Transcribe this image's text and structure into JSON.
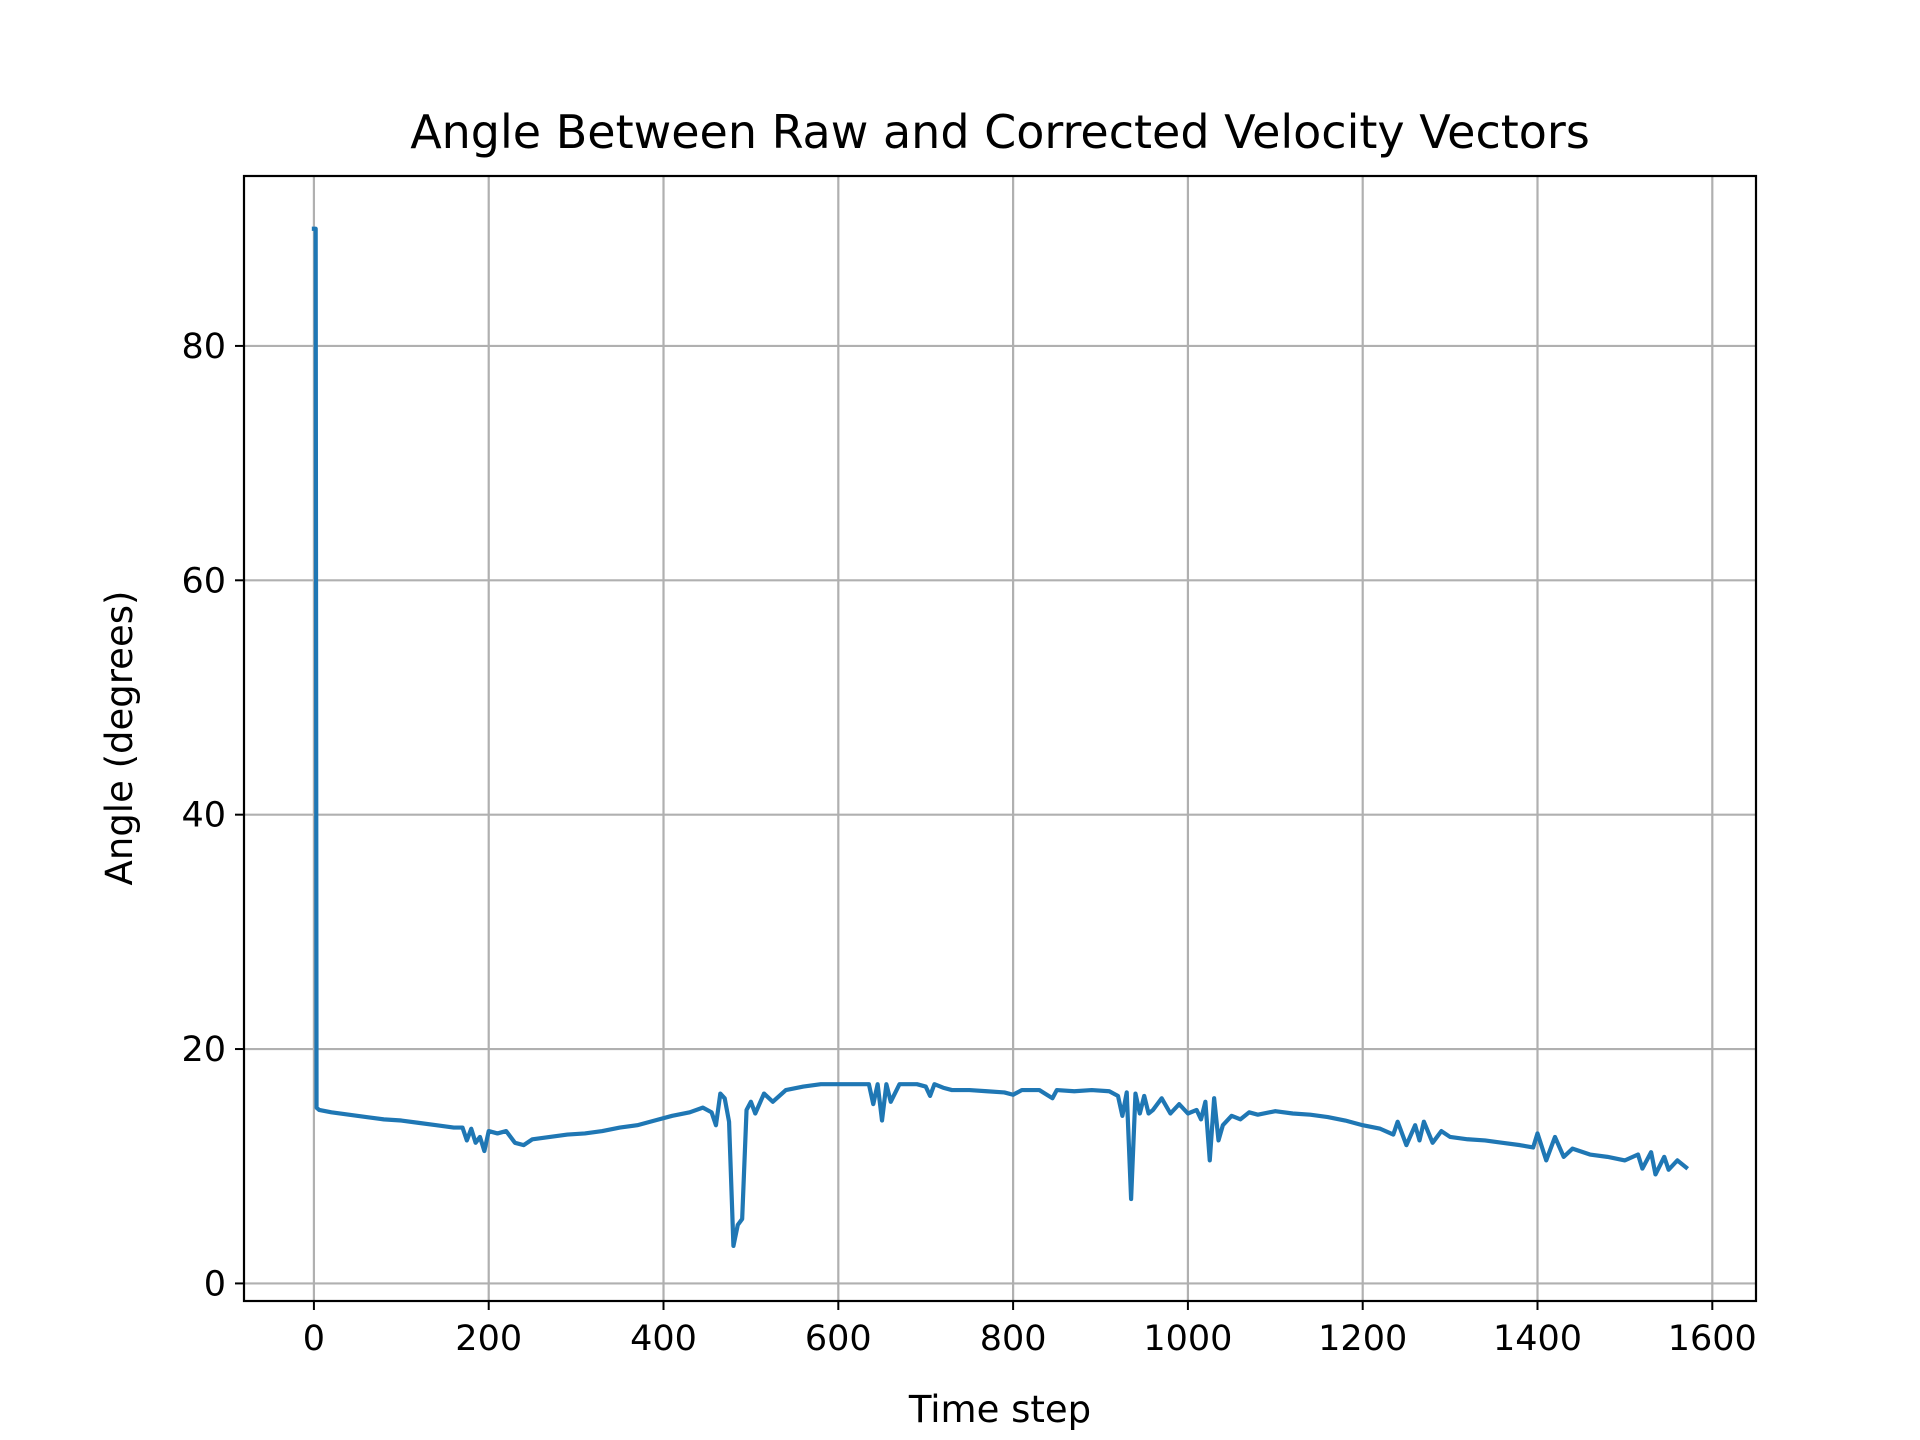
{
  "chart_data": {
    "type": "line",
    "title": "Angle Between Raw and Corrected Velocity Vectors",
    "xlabel": "Time step",
    "ylabel": "Angle (degrees)",
    "xlim": [
      -80,
      1650
    ],
    "ylim": [
      -1.5,
      94.5
    ],
    "x_ticks": [
      0,
      200,
      400,
      600,
      800,
      1000,
      1200,
      1400,
      1600
    ],
    "y_ticks": [
      0,
      20,
      40,
      60,
      80
    ],
    "grid": true,
    "legend": "none",
    "series": [
      {
        "color": "#1f77b4",
        "points": [
          [
            0,
            90
          ],
          [
            2,
            90
          ],
          [
            3,
            15
          ],
          [
            6,
            14.8
          ],
          [
            20,
            14.6
          ],
          [
            40,
            14.4
          ],
          [
            60,
            14.2
          ],
          [
            80,
            14.0
          ],
          [
            100,
            13.9
          ],
          [
            120,
            13.7
          ],
          [
            140,
            13.5
          ],
          [
            160,
            13.3
          ],
          [
            170,
            13.3
          ],
          [
            175,
            12.2
          ],
          [
            180,
            13.2
          ],
          [
            185,
            12.0
          ],
          [
            190,
            12.5
          ],
          [
            195,
            11.3
          ],
          [
            200,
            13.0
          ],
          [
            210,
            12.8
          ],
          [
            220,
            13.0
          ],
          [
            230,
            12.0
          ],
          [
            240,
            11.8
          ],
          [
            250,
            12.3
          ],
          [
            270,
            12.5
          ],
          [
            290,
            12.7
          ],
          [
            310,
            12.8
          ],
          [
            330,
            13.0
          ],
          [
            350,
            13.3
          ],
          [
            370,
            13.5
          ],
          [
            390,
            13.9
          ],
          [
            410,
            14.3
          ],
          [
            430,
            14.6
          ],
          [
            445,
            15.0
          ],
          [
            455,
            14.6
          ],
          [
            460,
            13.5
          ],
          [
            465,
            16.2
          ],
          [
            470,
            15.8
          ],
          [
            475,
            13.8
          ],
          [
            480,
            3.2
          ],
          [
            485,
            5.0
          ],
          [
            490,
            5.5
          ],
          [
            495,
            14.8
          ],
          [
            500,
            15.5
          ],
          [
            505,
            14.5
          ],
          [
            515,
            16.2
          ],
          [
            525,
            15.5
          ],
          [
            540,
            16.5
          ],
          [
            560,
            16.8
          ],
          [
            580,
            17.0
          ],
          [
            600,
            17.0
          ],
          [
            620,
            17.0
          ],
          [
            635,
            17.0
          ],
          [
            640,
            15.3
          ],
          [
            645,
            17.0
          ],
          [
            650,
            13.9
          ],
          [
            655,
            17.0
          ],
          [
            660,
            15.5
          ],
          [
            670,
            17.0
          ],
          [
            690,
            17.0
          ],
          [
            700,
            16.8
          ],
          [
            705,
            16.0
          ],
          [
            710,
            17.0
          ],
          [
            720,
            16.7
          ],
          [
            730,
            16.5
          ],
          [
            750,
            16.5
          ],
          [
            770,
            16.4
          ],
          [
            790,
            16.3
          ],
          [
            800,
            16.1
          ],
          [
            810,
            16.5
          ],
          [
            830,
            16.5
          ],
          [
            845,
            15.8
          ],
          [
            850,
            16.5
          ],
          [
            870,
            16.4
          ],
          [
            890,
            16.5
          ],
          [
            910,
            16.4
          ],
          [
            920,
            16.0
          ],
          [
            925,
            14.3
          ],
          [
            930,
            16.3
          ],
          [
            935,
            7.2
          ],
          [
            940,
            16.2
          ],
          [
            945,
            14.5
          ],
          [
            950,
            16.0
          ],
          [
            955,
            14.5
          ],
          [
            960,
            14.8
          ],
          [
            970,
            15.8
          ],
          [
            980,
            14.5
          ],
          [
            990,
            15.3
          ],
          [
            1000,
            14.5
          ],
          [
            1010,
            14.8
          ],
          [
            1015,
            14.0
          ],
          [
            1020,
            15.5
          ],
          [
            1025,
            10.5
          ],
          [
            1030,
            15.8
          ],
          [
            1035,
            12.2
          ],
          [
            1040,
            13.5
          ],
          [
            1050,
            14.3
          ],
          [
            1060,
            14.0
          ],
          [
            1070,
            14.6
          ],
          [
            1080,
            14.4
          ],
          [
            1100,
            14.7
          ],
          [
            1120,
            14.5
          ],
          [
            1140,
            14.4
          ],
          [
            1160,
            14.2
          ],
          [
            1180,
            13.9
          ],
          [
            1200,
            13.5
          ],
          [
            1220,
            13.2
          ],
          [
            1235,
            12.7
          ],
          [
            1240,
            13.8
          ],
          [
            1250,
            11.8
          ],
          [
            1260,
            13.5
          ],
          [
            1265,
            12.2
          ],
          [
            1270,
            13.8
          ],
          [
            1280,
            12.0
          ],
          [
            1290,
            13.0
          ],
          [
            1300,
            12.5
          ],
          [
            1320,
            12.3
          ],
          [
            1340,
            12.2
          ],
          [
            1360,
            12.0
          ],
          [
            1380,
            11.8
          ],
          [
            1395,
            11.6
          ],
          [
            1400,
            12.8
          ],
          [
            1410,
            10.5
          ],
          [
            1420,
            12.5
          ],
          [
            1430,
            10.8
          ],
          [
            1440,
            11.5
          ],
          [
            1460,
            11.0
          ],
          [
            1480,
            10.8
          ],
          [
            1500,
            10.5
          ],
          [
            1515,
            11.0
          ],
          [
            1520,
            9.8
          ],
          [
            1530,
            11.2
          ],
          [
            1535,
            9.3
          ],
          [
            1545,
            10.8
          ],
          [
            1550,
            9.7
          ],
          [
            1560,
            10.5
          ],
          [
            1570,
            9.9
          ]
        ]
      }
    ]
  }
}
